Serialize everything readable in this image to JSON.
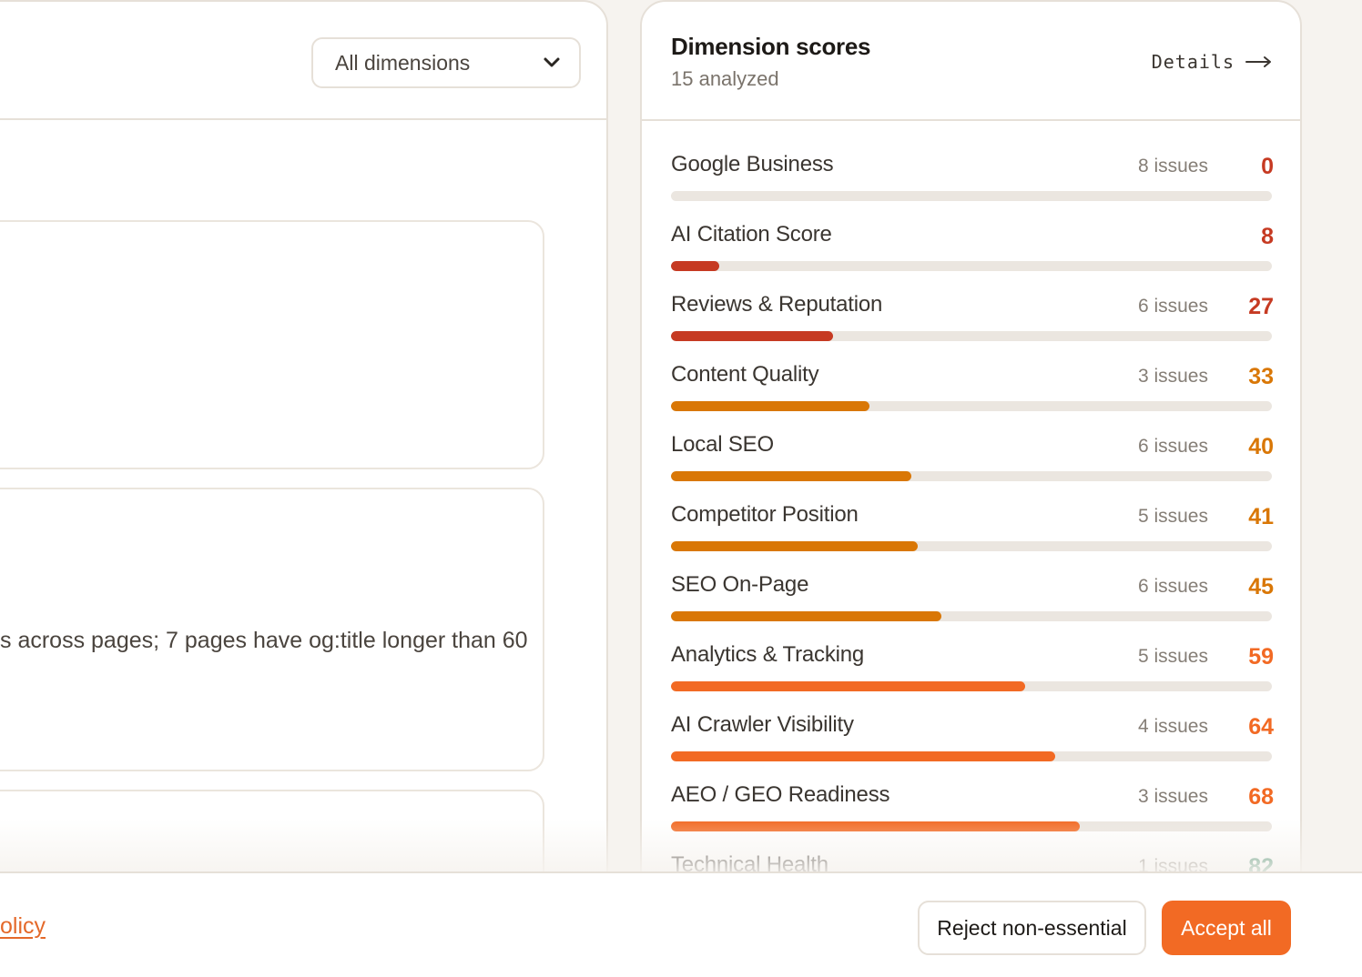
{
  "filter": {
    "selected": "All dimensions"
  },
  "findings": {
    "card2_text": "s across pages; 7 pages have og:title longer than 60"
  },
  "dimension_scores": {
    "title": "Dimension scores",
    "subtitle": "15 analyzed",
    "details_label": "Details",
    "items": [
      {
        "name": "Google Business",
        "issues": "8 issues",
        "score": "0",
        "value": 0,
        "color": "#c63a22"
      },
      {
        "name": "AI Citation Score",
        "issues": "",
        "score": "8",
        "value": 8,
        "color": "#c63a22"
      },
      {
        "name": "Reviews & Reputation",
        "issues": "6 issues",
        "score": "27",
        "value": 27,
        "color": "#c63a22"
      },
      {
        "name": "Content Quality",
        "issues": "3 issues",
        "score": "33",
        "value": 33,
        "color": "#d97706"
      },
      {
        "name": "Local SEO",
        "issues": "6 issues",
        "score": "40",
        "value": 40,
        "color": "#d97706"
      },
      {
        "name": "Competitor Position",
        "issues": "5 issues",
        "score": "41",
        "value": 41,
        "color": "#d97706"
      },
      {
        "name": "SEO On-Page",
        "issues": "6 issues",
        "score": "45",
        "value": 45,
        "color": "#d97706"
      },
      {
        "name": "Analytics & Tracking",
        "issues": "5 issues",
        "score": "59",
        "value": 59,
        "color": "#f26a24"
      },
      {
        "name": "AI Crawler Visibility",
        "issues": "4 issues",
        "score": "64",
        "value": 64,
        "color": "#f26a24"
      },
      {
        "name": "AEO / GEO Readiness",
        "issues": "3 issues",
        "score": "68",
        "value": 68,
        "color": "#f26a24"
      },
      {
        "name": "Technical Health",
        "issues": "1 issues",
        "score": "82",
        "value": 82,
        "color": "#2f7d5b"
      }
    ]
  },
  "cookie_banner": {
    "policy_link": "olicy",
    "reject_label": "Reject non-essential",
    "accept_label": "Accept all"
  }
}
